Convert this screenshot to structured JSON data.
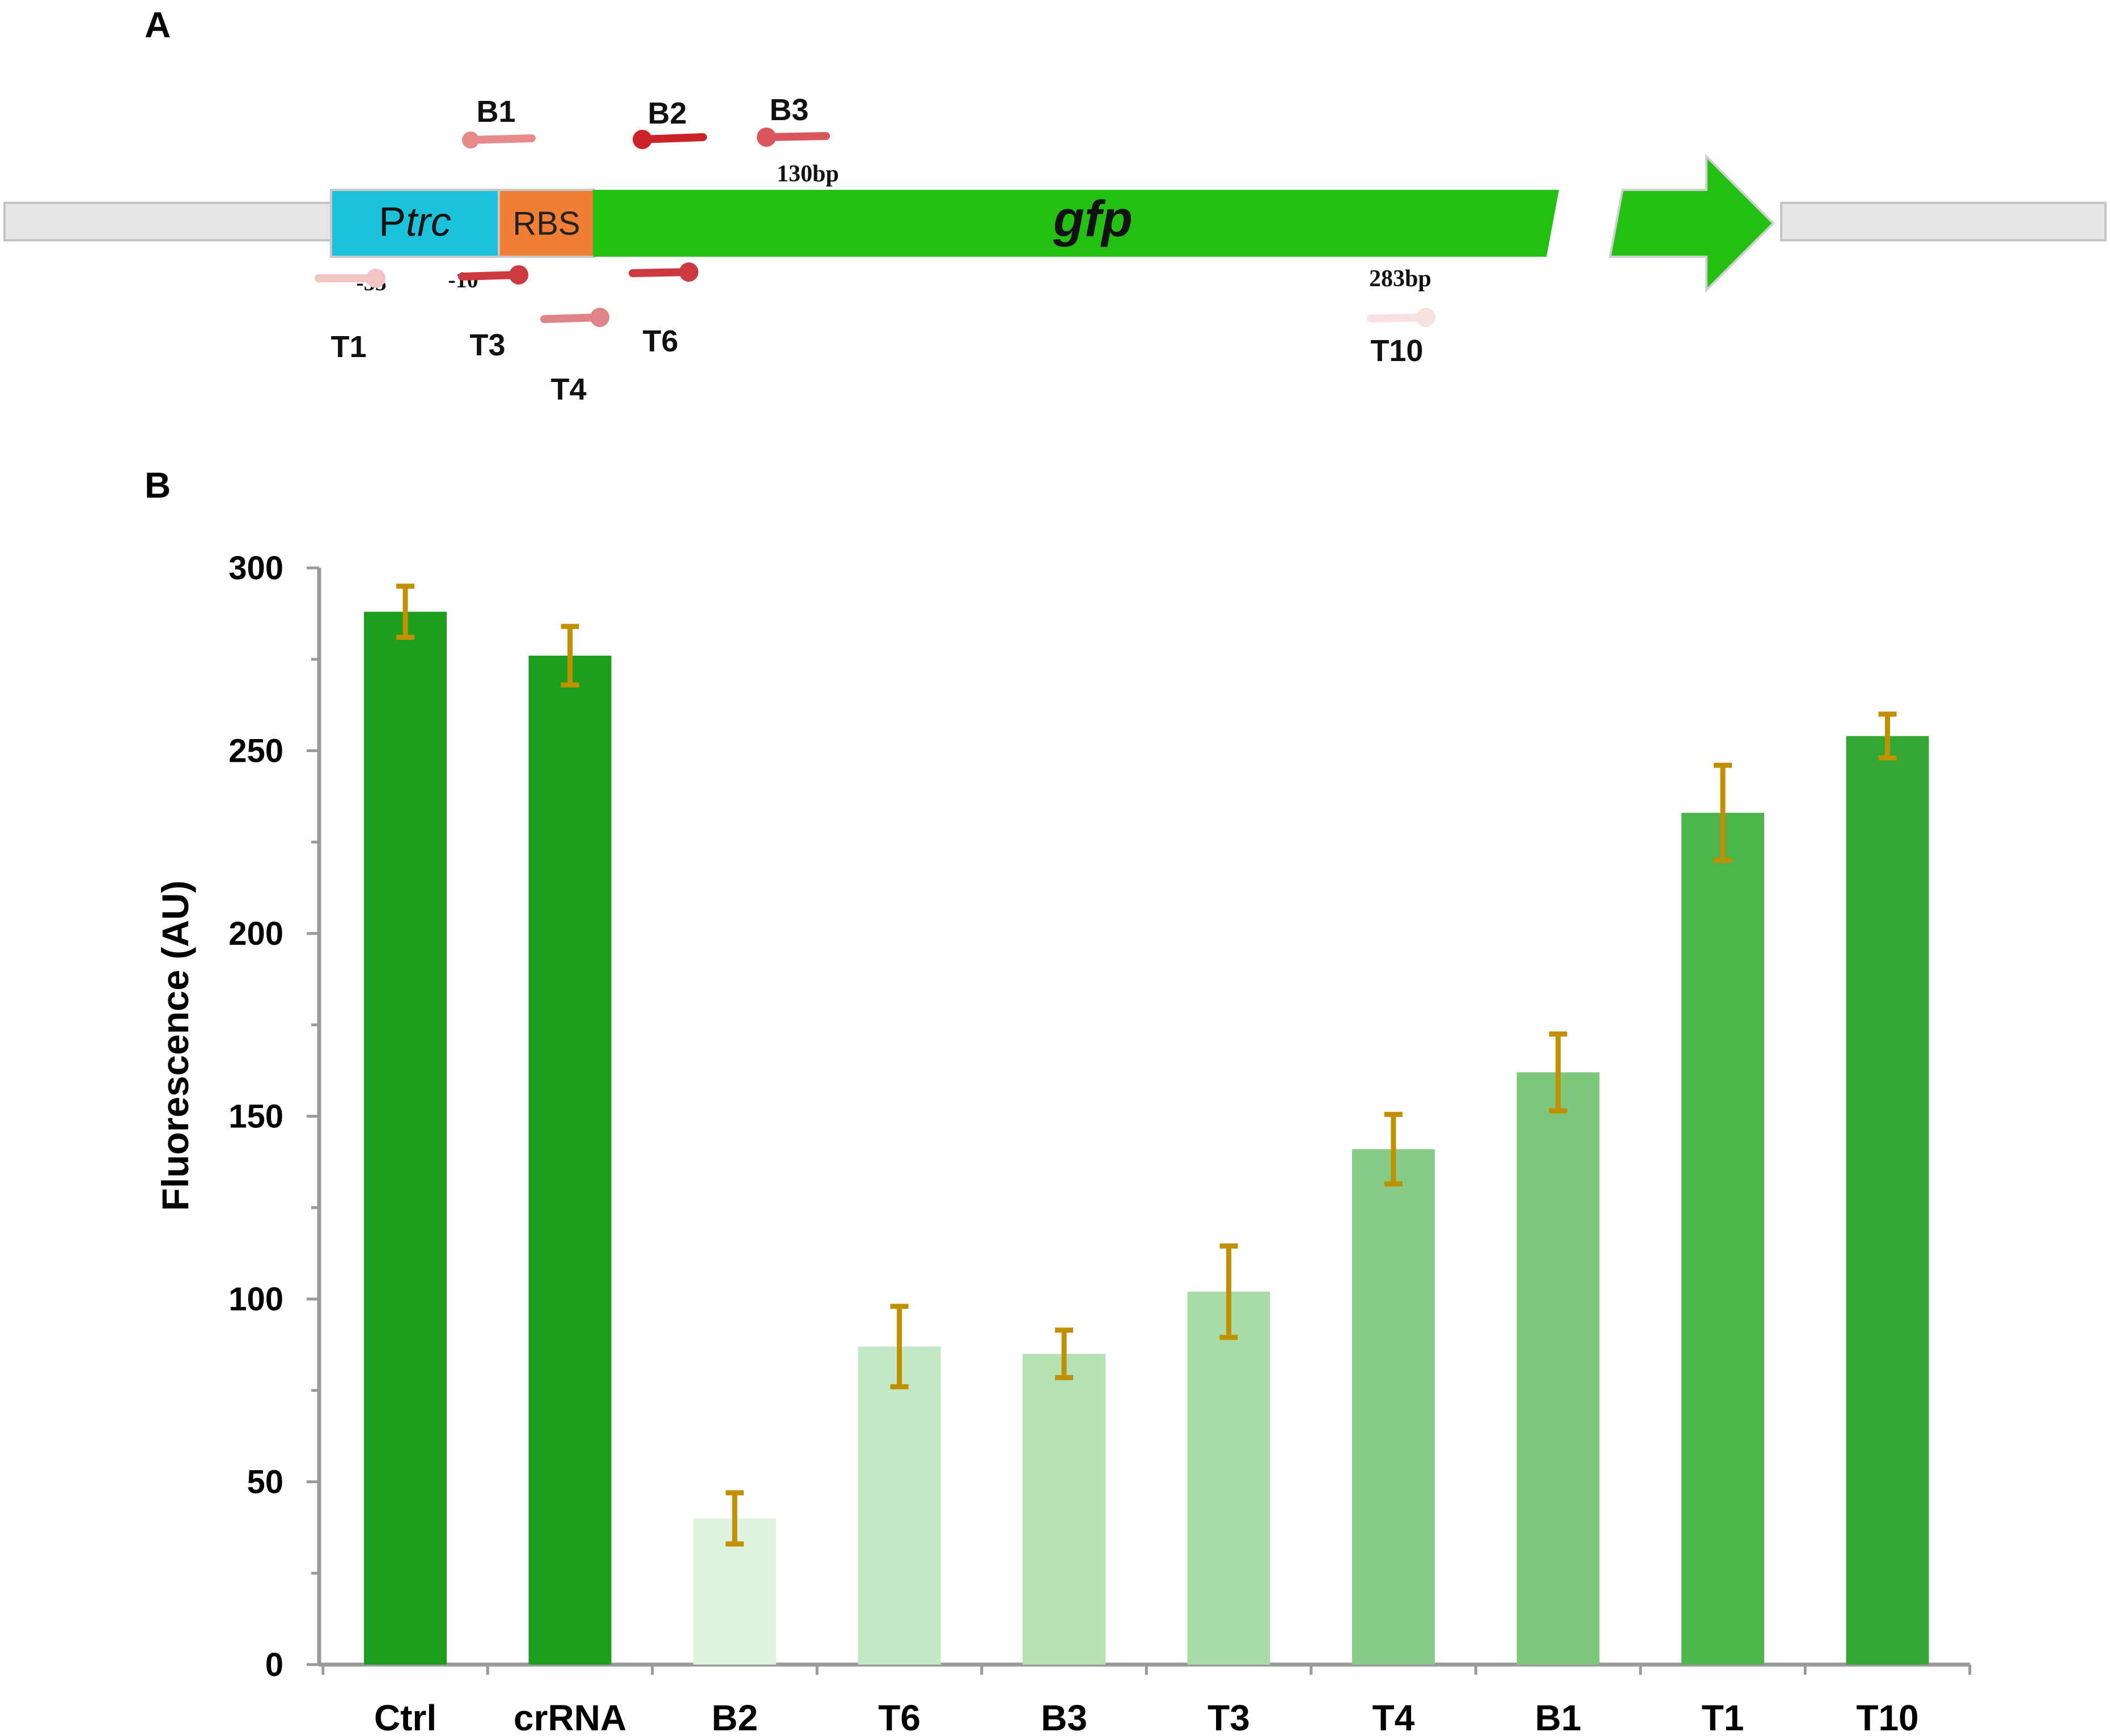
{
  "panel_a": {
    "label": "A",
    "promoter": {
      "prefix": "P",
      "italic": "trc"
    },
    "rbs": "RBS",
    "gene": "gfp",
    "marks": {
      "m35": "-35",
      "m10": "-10",
      "bp130": "130bp",
      "bp283": "283bp"
    },
    "guides_top": [
      {
        "name": "B1",
        "color": "#e8898c"
      },
      {
        "name": "B2",
        "color": "#cc2229"
      },
      {
        "name": "B3",
        "color": "#d9575c"
      }
    ],
    "guides_bottom": [
      {
        "name": "T1",
        "color": "#f3c4c4"
      },
      {
        "name": "T3",
        "color": "#cc3a40"
      },
      {
        "name": "T4",
        "color": "#e08386"
      },
      {
        "name": "T6",
        "color": "#cc3a40"
      },
      {
        "name": "T10",
        "color": "#f7e1e1"
      }
    ],
    "colors": {
      "promoter": "#1cc1da",
      "rbs": "#f07e35",
      "gene": "#25c014",
      "backbone": "#e6e6e6"
    }
  },
  "panel_b": {
    "label": "B"
  },
  "chart_data": {
    "type": "bar",
    "ylabel": "Fluorescence (AU)",
    "ylim": [
      0,
      300
    ],
    "yticks": [
      0,
      50,
      100,
      150,
      200,
      250,
      300
    ],
    "categories": [
      "Ctrl",
      "crRNA",
      "B2",
      "T6",
      "B3",
      "T3",
      "T4",
      "B1",
      "T1",
      "T10"
    ],
    "values": [
      288,
      276,
      40,
      87,
      85,
      102,
      141,
      162,
      233,
      254
    ],
    "errors": [
      7,
      8,
      7,
      11,
      6.5,
      12.5,
      9.5,
      10.5,
      13,
      6
    ],
    "colors": [
      "#1e9e1e",
      "#1e9e1e",
      "#dff2de",
      "#c4e8c3",
      "#b5e2b4",
      "#a6dca6",
      "#86cc86",
      "#7dc87d",
      "#4cb54c",
      "#33a833"
    ],
    "error_color": "#c09000",
    "grid": false
  }
}
